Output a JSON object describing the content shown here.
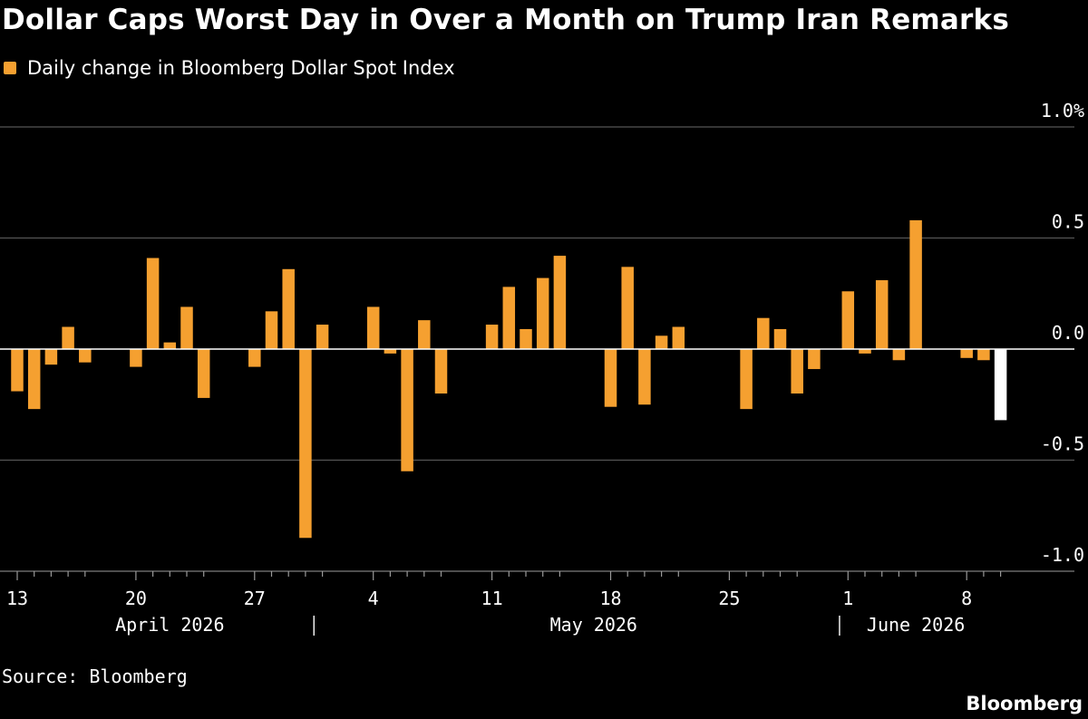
{
  "chart_data": {
    "type": "bar",
    "title": "Dollar Caps Worst Day in Over a Month on Trump Iran Remarks",
    "legend": [
      {
        "label": "Daily change in Bloomberg Dollar Spot Index",
        "color": "#f5a030"
      }
    ],
    "legend_placement": "top-left",
    "ylabel": "",
    "xlabel": "",
    "y_unit": "%",
    "ylim": [
      -1.0,
      1.0
    ],
    "y_ticks": [
      "1.0%",
      "0.5",
      "0.0",
      "-0.5",
      "-1.0"
    ],
    "y_tick_values": [
      1.0,
      0.5,
      0.0,
      -0.5,
      -1.0
    ],
    "grid": true,
    "x_axis_type": "date",
    "x_start": "2026-04-13",
    "x_end": "2026-06-10",
    "x_ticks": [
      {
        "label": "13",
        "date": "2026-04-13"
      },
      {
        "label": "20",
        "date": "2026-04-20"
      },
      {
        "label": "27",
        "date": "2026-04-27"
      },
      {
        "label": "4",
        "date": "2026-05-04"
      },
      {
        "label": "11",
        "date": "2026-05-11"
      },
      {
        "label": "18",
        "date": "2026-05-18"
      },
      {
        "label": "25",
        "date": "2026-05-25"
      },
      {
        "label": "1",
        "date": "2026-06-01"
      },
      {
        "label": "8",
        "date": "2026-06-08"
      }
    ],
    "month_labels": [
      {
        "label": "April 2026",
        "date": "2026-04-22"
      },
      {
        "label": "May 2026",
        "date": "2026-05-17"
      },
      {
        "label": "June 2026",
        "date": "2026-06-05"
      }
    ],
    "month_separators": [
      "2026-05-01",
      "2026-06-01"
    ],
    "series": [
      {
        "name": "Daily change in Bloomberg Dollar Spot Index",
        "color": "#f5a030",
        "latest_color": "#ffffff",
        "points": [
          {
            "date": "2026-04-13",
            "value": -0.19
          },
          {
            "date": "2026-04-14",
            "value": -0.27
          },
          {
            "date": "2026-04-15",
            "value": -0.07
          },
          {
            "date": "2026-04-16",
            "value": 0.1
          },
          {
            "date": "2026-04-17",
            "value": -0.06
          },
          {
            "date": "2026-04-20",
            "value": -0.08
          },
          {
            "date": "2026-04-21",
            "value": 0.41
          },
          {
            "date": "2026-04-22",
            "value": 0.03
          },
          {
            "date": "2026-04-23",
            "value": 0.19
          },
          {
            "date": "2026-04-24",
            "value": -0.22
          },
          {
            "date": "2026-04-27",
            "value": -0.08
          },
          {
            "date": "2026-04-28",
            "value": 0.17
          },
          {
            "date": "2026-04-29",
            "value": 0.36
          },
          {
            "date": "2026-04-30",
            "value": -0.85
          },
          {
            "date": "2026-05-01",
            "value": 0.11
          },
          {
            "date": "2026-05-04",
            "value": 0.19
          },
          {
            "date": "2026-05-05",
            "value": -0.02
          },
          {
            "date": "2026-05-06",
            "value": -0.55
          },
          {
            "date": "2026-05-07",
            "value": 0.13
          },
          {
            "date": "2026-05-08",
            "value": -0.2
          },
          {
            "date": "2026-05-11",
            "value": 0.11
          },
          {
            "date": "2026-05-12",
            "value": 0.28
          },
          {
            "date": "2026-05-13",
            "value": 0.09
          },
          {
            "date": "2026-05-14",
            "value": 0.32
          },
          {
            "date": "2026-05-15",
            "value": 0.42
          },
          {
            "date": "2026-05-18",
            "value": -0.26
          },
          {
            "date": "2026-05-19",
            "value": 0.37
          },
          {
            "date": "2026-05-20",
            "value": -0.25
          },
          {
            "date": "2026-05-21",
            "value": 0.06
          },
          {
            "date": "2026-05-22",
            "value": 0.1
          },
          {
            "date": "2026-05-26",
            "value": -0.27
          },
          {
            "date": "2026-05-27",
            "value": 0.14
          },
          {
            "date": "2026-05-28",
            "value": 0.09
          },
          {
            "date": "2026-05-29",
            "value": -0.2
          },
          {
            "date": "2026-05-30",
            "value": -0.09
          },
          {
            "date": "2026-06-01",
            "value": 0.26
          },
          {
            "date": "2026-06-02",
            "value": -0.02
          },
          {
            "date": "2026-06-03",
            "value": 0.31
          },
          {
            "date": "2026-06-04",
            "value": -0.05
          },
          {
            "date": "2026-06-05",
            "value": 0.58
          },
          {
            "date": "2026-06-08",
            "value": -0.04
          },
          {
            "date": "2026-06-09",
            "value": -0.05
          },
          {
            "date": "2026-06-10",
            "value": -0.32
          }
        ]
      }
    ],
    "source": "Source: Bloomberg",
    "brand": "Bloomberg"
  }
}
